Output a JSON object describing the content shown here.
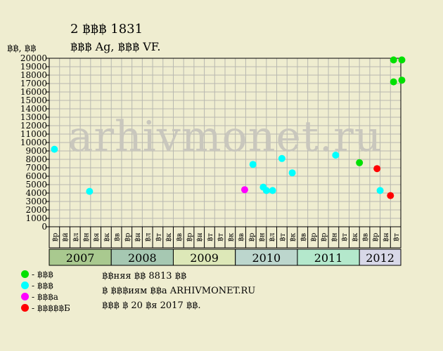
{
  "title_line1": "2 ฿฿฿ 1831",
  "title_line2": "฿฿฿ Ag, ฿฿฿ VF.",
  "y_unit": "฿฿, ฿฿",
  "watermark": "arhivmonet.ru",
  "legend": [
    {
      "label": "- ฿฿฿",
      "color": "#00e000"
    },
    {
      "label": "- ฿฿฿",
      "color": "#00ffff"
    },
    {
      "label": "- ฿฿฿а",
      "color": "#ff00ff"
    },
    {
      "label": "- ฿฿฿฿฿Б",
      "color": "#ff0000"
    }
  ],
  "notes": [
    "฿฿няя ฿฿ 8813 ฿฿",
    "฿ ฿฿฿иям ฿฿а ARHIVMONET.RU",
    "฿฿฿ ฿ 20 ฿я 2017 ฿฿."
  ],
  "chart_data": {
    "type": "scatter",
    "ylim": [
      0,
      20000
    ],
    "yticks": [
      0,
      1000,
      2000,
      3000,
      4000,
      5000,
      6000,
      7000,
      8000,
      9000,
      10000,
      11000,
      12000,
      13000,
      14000,
      15000,
      16000,
      17000,
      18000,
      19000,
      20000
    ],
    "month_labels": [
      "฿р",
      "฿й",
      "฿л",
      "฿н",
      "฿я",
      "฿к",
      "฿в",
      "฿р",
      "฿н",
      "฿л",
      "฿т",
      "฿к",
      "฿в",
      "฿р",
      "฿н",
      "฿т",
      "฿т",
      "฿к",
      "฿в",
      "฿р",
      "฿н",
      "฿л",
      "฿т",
      "฿к",
      "฿в",
      "฿р",
      "฿р",
      "฿н",
      "฿т",
      "฿к",
      "฿в",
      "฿р",
      "฿н",
      "฿т"
    ],
    "years": [
      {
        "label": "2007",
        "months": 6,
        "color": "#a9c98f"
      },
      {
        "label": "2008",
        "months": 6,
        "color": "#a6c8b2"
      },
      {
        "label": "2009",
        "months": 6,
        "color": "#dde8b8"
      },
      {
        "label": "2010",
        "months": 6,
        "color": "#bcd6cd"
      },
      {
        "label": "2011",
        "months": 6,
        "color": "#b4e8cc"
      },
      {
        "label": "2012",
        "months": 4,
        "color": "#d8d8e8"
      }
    ],
    "series": [
      {
        "color": "#00e000",
        "points": [
          [
            29.5,
            7600
          ],
          [
            32.8,
            19800
          ],
          [
            33.6,
            19800
          ],
          [
            32.8,
            17200
          ],
          [
            33.6,
            17400
          ]
        ]
      },
      {
        "color": "#00ffff",
        "points": [
          [
            0.0,
            9200
          ],
          [
            3.4,
            4200
          ],
          [
            19.2,
            7400
          ],
          [
            20.2,
            4700
          ],
          [
            20.5,
            4300
          ],
          [
            21.1,
            4300
          ],
          [
            22.0,
            8100
          ],
          [
            23.0,
            6400
          ],
          [
            27.2,
            8500
          ],
          [
            31.5,
            4300
          ]
        ]
      },
      {
        "color": "#ff00ff",
        "points": [
          [
            18.4,
            4400
          ]
        ]
      },
      {
        "color": "#ff0000",
        "points": [
          [
            31.2,
            6900
          ],
          [
            32.5,
            3700
          ]
        ]
      }
    ]
  }
}
